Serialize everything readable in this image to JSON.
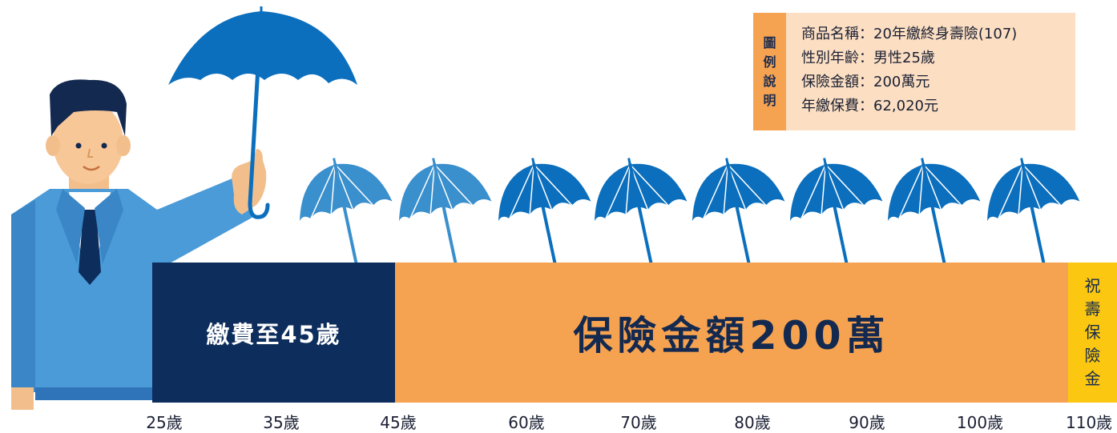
{
  "legend": {
    "tab_chars": [
      "圖",
      "例",
      "說",
      "明"
    ],
    "lines": [
      "商品名稱：20年繳終身壽險(107)",
      "性別年齡：男性25歲",
      "保險金額：200萬元",
      "年繳保費：62,020元"
    ]
  },
  "bars": {
    "premium_label": "繳費至45歲",
    "coverage_label": "保險金額200萬",
    "benefit_chars": [
      "祝",
      "壽",
      "保",
      "險",
      "金"
    ]
  },
  "ages": [
    "25歲",
    "35歲",
    "45歲",
    "60歲",
    "70歲",
    "80歲",
    "90歲",
    "100歲",
    "110歲"
  ],
  "colors": {
    "premium_bar": "#0d2d5c",
    "coverage_bar": "#f6a351",
    "benefit_bar": "#fbc711",
    "legend_bg": "#fcdfc2",
    "umbrella_light": "#3a8fcd",
    "umbrella_dark": "#0b6fbd"
  },
  "icons": [
    "man-holding-umbrella",
    "umbrella-icon"
  ]
}
